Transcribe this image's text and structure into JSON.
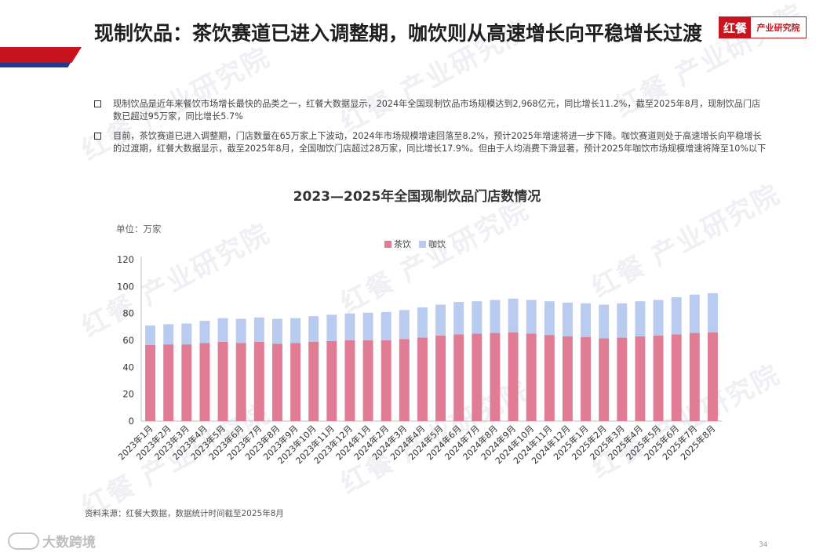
{
  "header": {
    "title": "现制饮品：茶饮赛道已进入调整期，咖饮则从高速增长向平稳增长过渡",
    "logo_mark": "红餐",
    "logo_text": "产业研究院"
  },
  "watermark_text": "红餐 产业研究院",
  "bullets": [
    "现制饮品是近年来餐饮市场增长最快的品类之一，红餐大数据显示，2024年全国现制饮品市场规模达到2,968亿元，同比增长11.2%，截至2025年8月，现制饮品门店数已超过95万家，同比增长5.7%",
    "目前，茶饮赛道已进入调整期，门店数量在65万家上下波动，2024年市场规模增速回落至8.2%，预计2025年增速将进一步下降。咖饮赛道则处于高速增长向平稳增长的过渡期，红餐大数据显示，截至2025年8月，全国咖饮门店超过28万家，同比增长17.9%。但由于人均消费下滑显著，预计2025年咖饮市场规模增速将降至10%以下"
  ],
  "chart_data": {
    "type": "bar",
    "stacked": true,
    "title": "2023—2025年全国现制饮品门店数情况",
    "unit_label": "单位：万家",
    "categories": [
      "2023年1月",
      "2023年2月",
      "2023年3月",
      "2023年4月",
      "2023年5月",
      "2023年6月",
      "2023年7月",
      "2023年8月",
      "2023年9月",
      "2023年10月",
      "2023年11月",
      "2023年12月",
      "2024年1月",
      "2024年2月",
      "2024年3月",
      "2024年4月",
      "2024年5月",
      "2024年6月",
      "2024年7月",
      "2024年8月",
      "2024年9月",
      "2024年10月",
      "2024年11月",
      "2024年12月",
      "2025年1月",
      "2025年2月",
      "2025年3月",
      "2025年4月",
      "2025年5月",
      "2025年6月",
      "2025年7月",
      "2025年8月"
    ],
    "series": [
      {
        "name": "茶饮",
        "color": "#e07c93",
        "values": [
          56.5,
          57,
          57,
          58,
          59,
          58,
          59,
          57.5,
          58,
          59,
          59.5,
          60,
          60,
          60,
          61,
          62,
          63.5,
          64.5,
          65,
          65.5,
          66,
          65,
          64,
          63,
          62.5,
          61.5,
          62,
          63,
          63.5,
          64.5,
          65.5,
          66
        ]
      },
      {
        "name": "咖饮",
        "color": "#b9cbee",
        "values": [
          14.5,
          15,
          15.5,
          16.5,
          17.5,
          18,
          18,
          18.5,
          18.5,
          19,
          19.5,
          20,
          20.5,
          21,
          21.5,
          22.5,
          23,
          24,
          24,
          24.5,
          25,
          25,
          25,
          25,
          25,
          25,
          25.5,
          26,
          26.5,
          27.5,
          28.5,
          29
        ]
      }
    ],
    "ylim": [
      0,
      120
    ],
    "yticks": [
      0,
      20,
      40,
      60,
      80,
      100,
      120
    ],
    "legend_position": "top-center",
    "grid": false
  },
  "footer": {
    "source": "资料来源：红餐大数据，数据统计时间截至2025年8月",
    "brand": "大数跨境",
    "page_number": "34"
  }
}
